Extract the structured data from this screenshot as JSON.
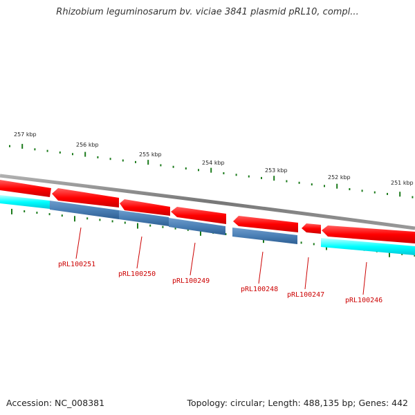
{
  "title": "Rhizobium leguminosarum bv. viciae 3841 plasmid pRL10, compl...",
  "footer": {
    "accession": "Accession: NC_008381",
    "stats": "Topology: circular; Length: 488,135 bp; Genes: 442"
  },
  "colors": {
    "backbone": "#888888",
    "forward_cds": "#ff0000",
    "reverse_cds": "#00ffff",
    "gene_bar": "#4a7fb5",
    "gene_bar_alt": "#00e5ee",
    "tick": "#1a7a1a",
    "gene_label": "#cc0000"
  },
  "scale_labels": [
    {
      "text": "257 kbp"
    },
    {
      "text": "256 kbp"
    },
    {
      "text": "255 kbp"
    },
    {
      "text": "254 kbp"
    },
    {
      "text": "253 kbp"
    },
    {
      "text": "252 kbp"
    },
    {
      "text": "251 kbp"
    }
  ],
  "gene_labels": [
    {
      "text": "pRL100251"
    },
    {
      "text": "pRL100250"
    },
    {
      "text": "pRL100249"
    },
    {
      "text": "pRL100248"
    },
    {
      "text": "pRL100247"
    },
    {
      "text": "pRL100246"
    }
  ]
}
